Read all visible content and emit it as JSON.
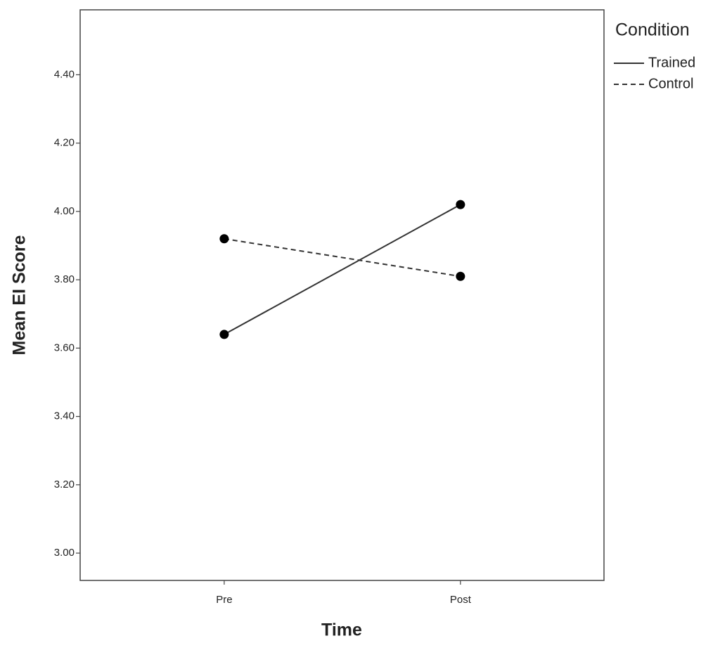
{
  "chart_data": {
    "type": "line",
    "x_label": "Time",
    "y_label": "Mean EI Score",
    "categories": [
      "Pre",
      "Post"
    ],
    "series": [
      {
        "name": "Trained",
        "color": "#333333",
        "style": "solid",
        "values": [
          3.64,
          4.02
        ]
      },
      {
        "name": "Control",
        "color": "#333333",
        "style": "dashed",
        "values": [
          3.92,
          3.81
        ]
      }
    ],
    "ylim": [
      2.92,
      4.59
    ],
    "yticks": [
      {
        "value": 3.0,
        "label": "3.00"
      },
      {
        "value": 3.2,
        "label": "3.20"
      },
      {
        "value": 3.4,
        "label": "3.40"
      },
      {
        "value": 3.6,
        "label": "3.60"
      },
      {
        "value": 3.8,
        "label": "3.80"
      },
      {
        "value": 4.0,
        "label": "4.00"
      },
      {
        "value": 4.2,
        "label": "4.20"
      },
      {
        "value": 4.4,
        "label": "4.40"
      }
    ],
    "legend_title": "Condition",
    "legend_position": "right",
    "grid": false
  }
}
